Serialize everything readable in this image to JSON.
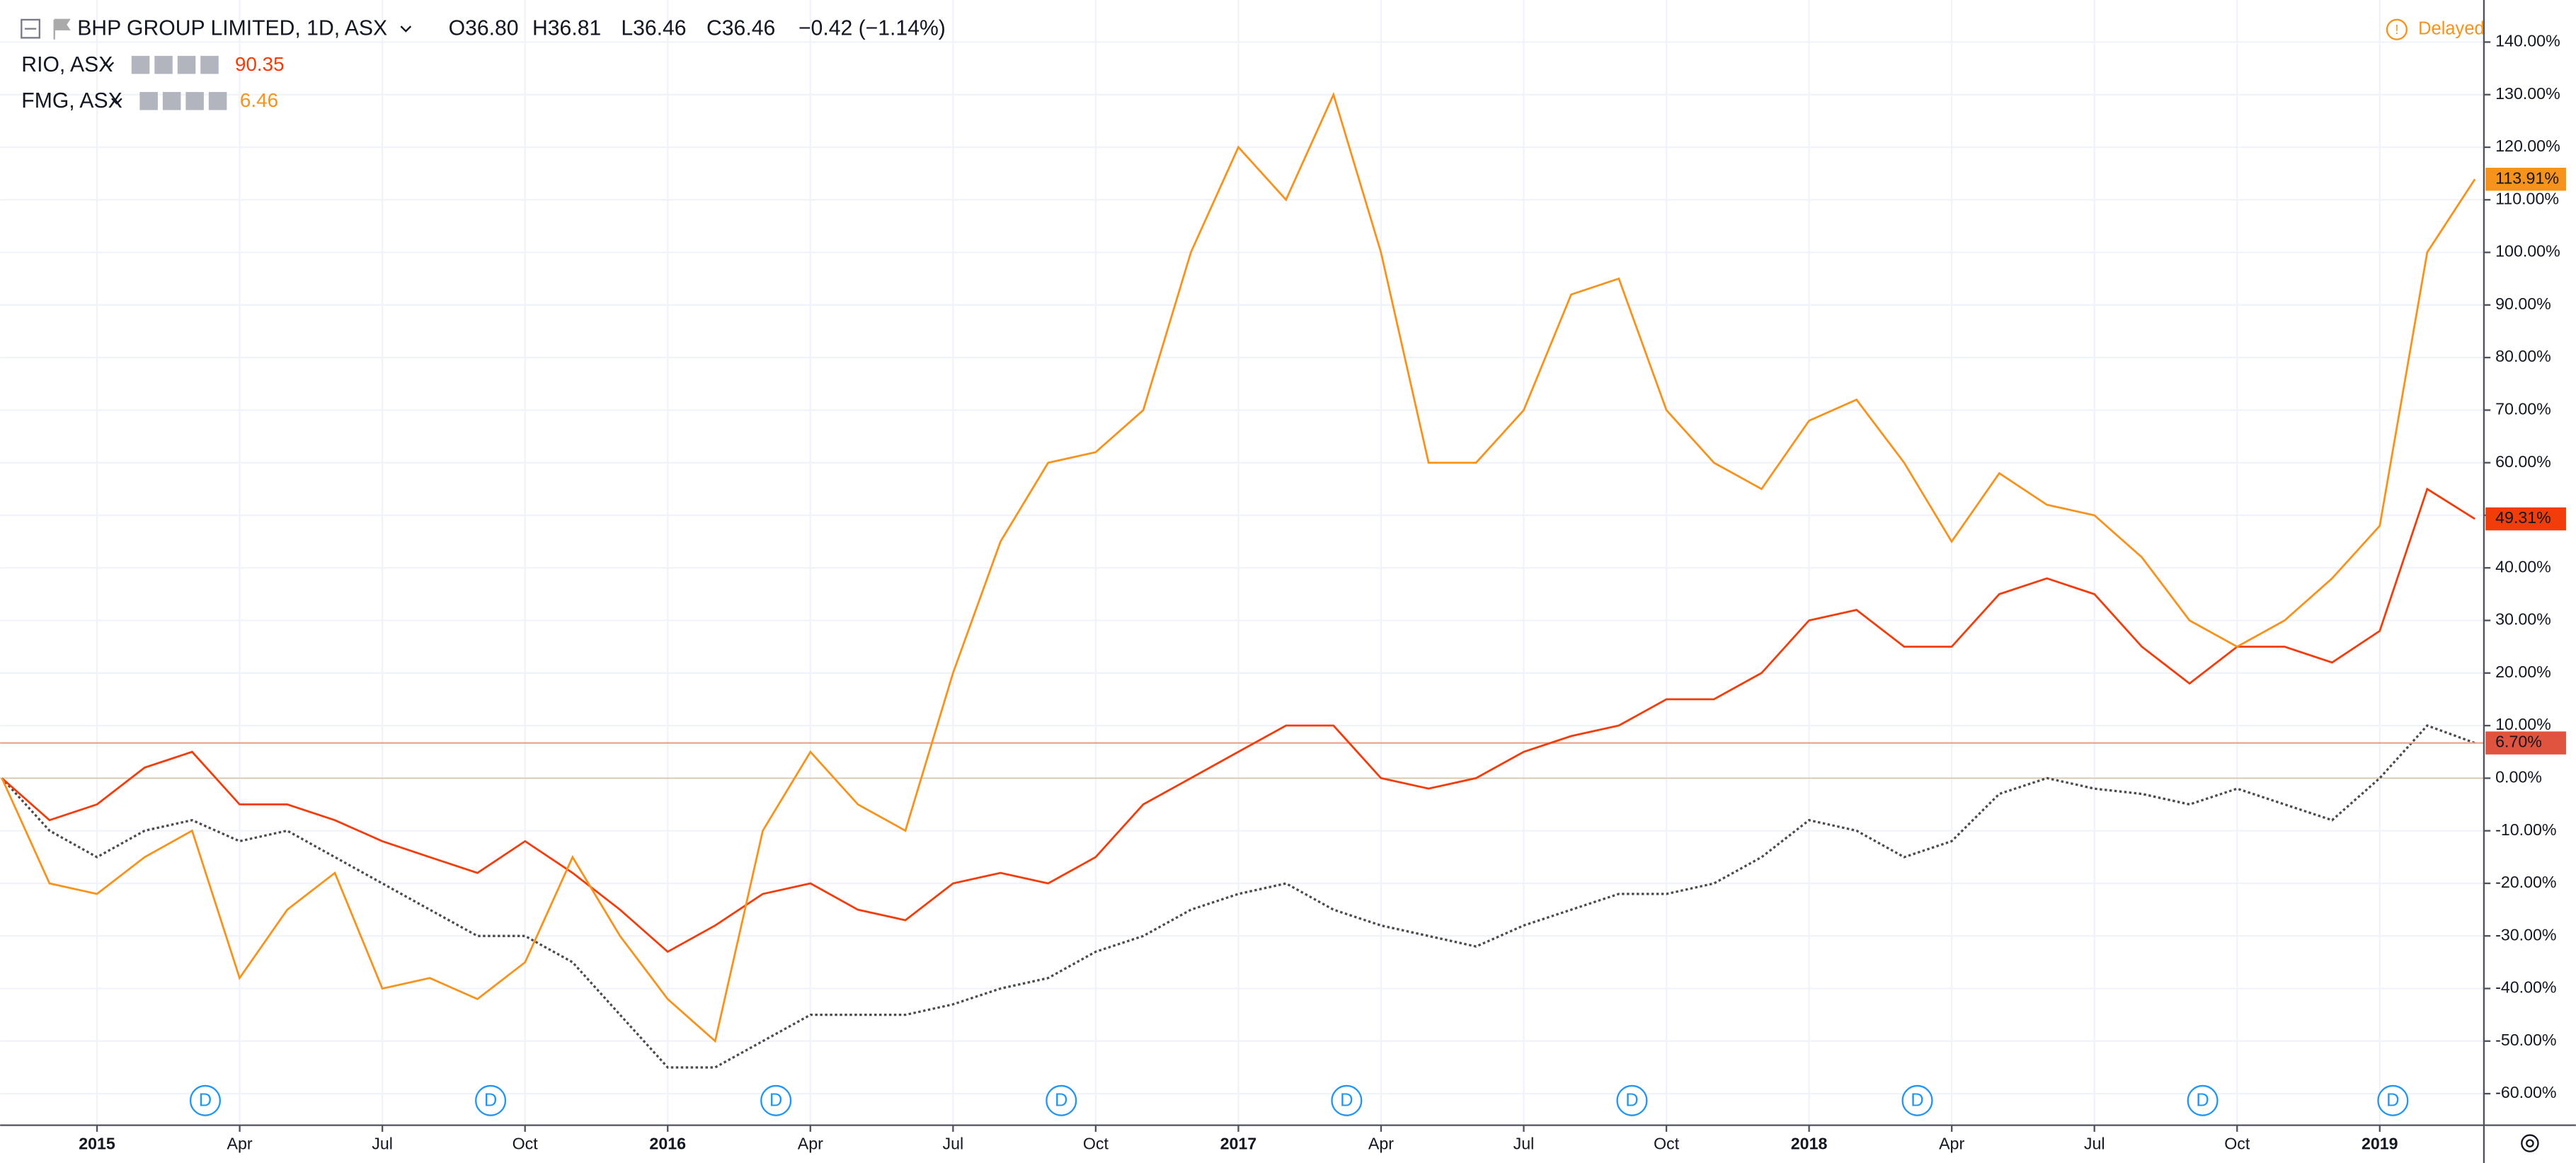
{
  "chart_data": {
    "type": "line",
    "quote": [
      "O36.80",
      "H36.81",
      "L36.46",
      "C36.46",
      "−0.42 (−1.14%)"
    ],
    "status": "Delayed",
    "x": [
      "2014-11",
      "2014-12",
      "2015-01",
      "2015-02",
      "2015-03",
      "2015-04",
      "2015-05",
      "2015-06",
      "2015-07",
      "2015-08",
      "2015-09",
      "2015-10",
      "2015-11",
      "2015-12",
      "2016-01",
      "2016-02",
      "2016-03",
      "2016-04",
      "2016-05",
      "2016-06",
      "2016-07",
      "2016-08",
      "2016-09",
      "2016-10",
      "2016-11",
      "2016-12",
      "2017-01",
      "2017-02",
      "2017-03",
      "2017-04",
      "2017-05",
      "2017-06",
      "2017-07",
      "2017-08",
      "2017-09",
      "2017-10",
      "2017-11",
      "2017-12",
      "2018-01",
      "2018-02",
      "2018-03",
      "2018-04",
      "2018-05",
      "2018-06",
      "2018-07",
      "2018-08",
      "2018-09",
      "2018-10",
      "2018-11",
      "2018-12",
      "2019-01",
      "2019-02",
      "2019-03"
    ],
    "series": [
      {
        "name": "BHP GROUP LIMITED, 1D, ASX",
        "color": "#4a4a4a",
        "tag_color": "#e0533f",
        "values": [
          0,
          -10,
          -15,
          -10,
          -8,
          -12,
          -10,
          -15,
          -20,
          -25,
          -30,
          -30,
          -35,
          -45,
          -55,
          -55,
          -50,
          -45,
          -45,
          -45,
          -43,
          -40,
          -38,
          -33,
          -30,
          -25,
          -22,
          -20,
          -25,
          -28,
          -30,
          -32,
          -28,
          -25,
          -22,
          -22,
          -20,
          -15,
          -8,
          -10,
          -15,
          -12,
          -3,
          0,
          -2,
          -3,
          -5,
          -2,
          -5,
          -8,
          0,
          10,
          6.7
        ],
        "value_labels": [
          null,
          null,
          null,
          null,
          null,
          null,
          null,
          null,
          null,
          null,
          null,
          null,
          null,
          null,
          null,
          null,
          null,
          null,
          null,
          null,
          null,
          null,
          null,
          null,
          null,
          null,
          null,
          null,
          null,
          null,
          null,
          null,
          null,
          null,
          null,
          null,
          null,
          null,
          null,
          null,
          null,
          null,
          null,
          null,
          null,
          null,
          null,
          null,
          null,
          null,
          null,
          null,
          "6.70%"
        ]
      },
      {
        "name": "RIO, ASX",
        "price": 90.35,
        "color": "#f23d0a",
        "tag_color": "#f23d0a",
        "values": [
          0,
          -8,
          -5,
          2,
          5,
          -5,
          -5,
          -8,
          -12,
          -15,
          -18,
          -12,
          -18,
          -25,
          -33,
          -28,
          -22,
          -20,
          -25,
          -27,
          -20,
          -18,
          -20,
          -15,
          -5,
          0,
          5,
          10,
          10,
          0,
          -2,
          0,
          5,
          8,
          10,
          15,
          15,
          20,
          30,
          32,
          25,
          25,
          35,
          38,
          35,
          25,
          18,
          25,
          25,
          22,
          28,
          55,
          49.31
        ],
        "value_labels": [
          null,
          null,
          null,
          null,
          null,
          null,
          null,
          null,
          null,
          null,
          null,
          null,
          null,
          null,
          null,
          null,
          null,
          null,
          null,
          null,
          null,
          null,
          null,
          null,
          null,
          null,
          null,
          null,
          null,
          null,
          null,
          null,
          null,
          null,
          null,
          null,
          null,
          null,
          null,
          null,
          null,
          null,
          null,
          null,
          null,
          null,
          null,
          null,
          null,
          null,
          null,
          null,
          "49.31%"
        ]
      },
      {
        "name": "FMG, ASX",
        "price": 6.46,
        "color": "#f7931a",
        "tag_color": "#f7931a",
        "values": [
          0,
          -20,
          -22,
          -15,
          -10,
          -38,
          -25,
          -18,
          -40,
          -38,
          -42,
          -35,
          -15,
          -30,
          -42,
          -50,
          -10,
          5,
          -5,
          -10,
          20,
          45,
          60,
          62,
          70,
          100,
          120,
          110,
          130,
          100,
          60,
          60,
          70,
          92,
          95,
          70,
          60,
          55,
          68,
          72,
          60,
          45,
          58,
          52,
          50,
          42,
          30,
          25,
          30,
          38,
          48,
          100,
          113.91
        ],
        "value_labels": [
          null,
          null,
          null,
          null,
          null,
          null,
          null,
          null,
          null,
          null,
          null,
          null,
          null,
          null,
          null,
          null,
          null,
          null,
          null,
          null,
          null,
          null,
          null,
          null,
          null,
          null,
          null,
          null,
          null,
          null,
          null,
          null,
          null,
          null,
          null,
          null,
          null,
          null,
          null,
          null,
          null,
          null,
          null,
          null,
          null,
          null,
          null,
          null,
          null,
          null,
          null,
          null,
          "113.91%"
        ]
      }
    ],
    "dividends": [
      {
        "date": "2015-03",
        "label": "D"
      },
      {
        "date": "2015-09",
        "label": "D"
      },
      {
        "date": "2016-03",
        "label": "D"
      },
      {
        "date": "2016-09",
        "label": "D"
      },
      {
        "date": "2017-03",
        "label": "D"
      },
      {
        "date": "2017-09",
        "label": "D"
      },
      {
        "date": "2018-03",
        "label": "D"
      },
      {
        "date": "2018-09",
        "label": "D"
      },
      {
        "date": "2019-01",
        "label": "D"
      }
    ],
    "ylim": [
      -66,
      148
    ],
    "yticks": [
      {
        "value": -60,
        "label": "-60.00%"
      },
      {
        "value": -50,
        "label": "-50.00%"
      },
      {
        "value": -40,
        "label": "-40.00%"
      },
      {
        "value": -30,
        "label": "-30.00%"
      },
      {
        "value": -20,
        "label": "-20.00%"
      },
      {
        "value": -10,
        "label": "-10.00%"
      },
      {
        "value": 0,
        "label": "0.00%"
      },
      {
        "value": 10,
        "label": "10.00%"
      },
      {
        "value": 20,
        "label": "20.00%"
      },
      {
        "value": 30,
        "label": "30.00%"
      },
      {
        "value": 40,
        "label": "40.00%"
      },
      {
        "value": 50,
        "label": "50.00%"
      },
      {
        "value": 60,
        "label": "60.00%"
      },
      {
        "value": 70,
        "label": "70.00%"
      },
      {
        "value": 80,
        "label": "80.00%"
      },
      {
        "value": 90,
        "label": "90.00%"
      },
      {
        "value": 100,
        "label": "100.00%"
      },
      {
        "value": 110,
        "label": "110.00%"
      },
      {
        "value": 120,
        "label": "120.00%"
      },
      {
        "value": 130,
        "label": "130.00%"
      },
      {
        "value": 140,
        "label": "140.00%"
      }
    ],
    "xticks": [
      {
        "value": "2015-01",
        "label": "2015"
      },
      {
        "value": "2015-04",
        "label": "Apr"
      },
      {
        "value": "2015-07",
        "label": "Jul"
      },
      {
        "value": "2015-10",
        "label": "Oct"
      },
      {
        "value": "2016-01",
        "label": "2016"
      },
      {
        "value": "2016-04",
        "label": "Apr"
      },
      {
        "value": "2016-07",
        "label": "Jul"
      },
      {
        "value": "2016-10",
        "label": "Oct"
      },
      {
        "value": "2017-01",
        "label": "2017"
      },
      {
        "value": "2017-04",
        "label": "Apr"
      },
      {
        "value": "2017-07",
        "label": "Jul"
      },
      {
        "value": "2017-10",
        "label": "Oct"
      },
      {
        "value": "2018-01",
        "label": "2018"
      },
      {
        "value": "2018-04",
        "label": "Apr"
      },
      {
        "value": "2018-07",
        "label": "Jul"
      },
      {
        "value": "2018-10",
        "label": "Oct"
      },
      {
        "value": "2019-01",
        "label": "2019"
      }
    ],
    "grid": true
  }
}
